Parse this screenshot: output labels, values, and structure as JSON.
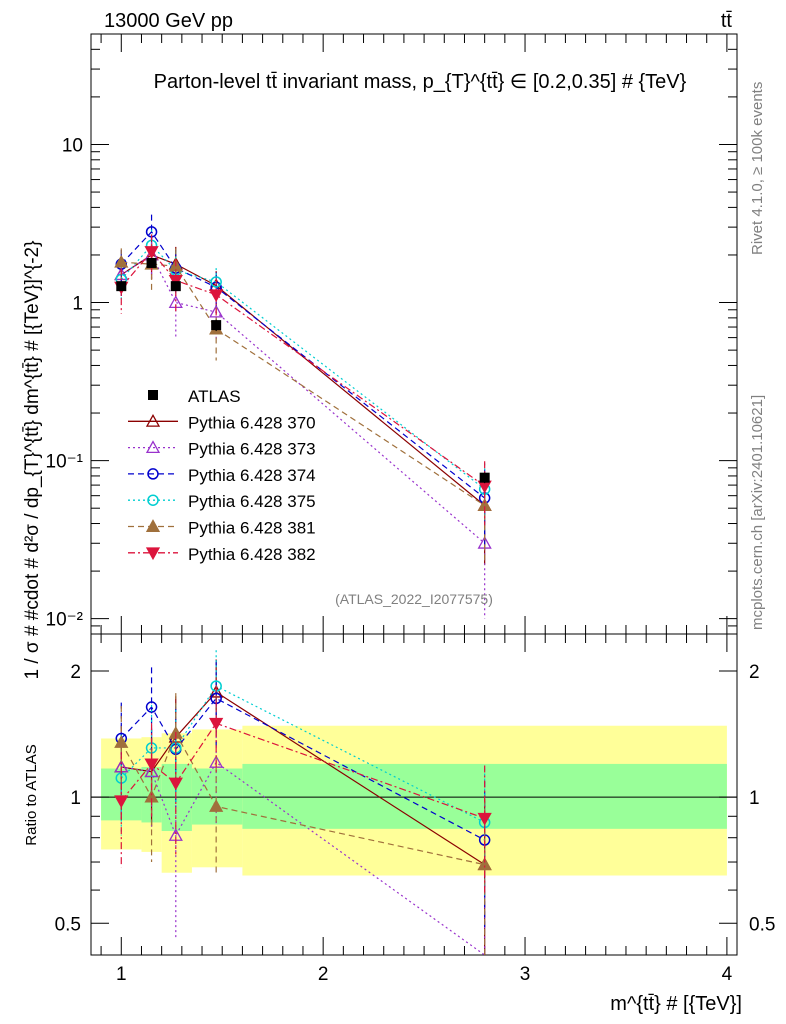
{
  "header": {
    "left": "13000 GeV pp",
    "right": "tt̄"
  },
  "side": {
    "rivet": "Rivet 4.1.0, ≥ 100k events",
    "mcplots": "mcplots.cern.ch [arXiv:2401.10621]"
  },
  "watermark": "(ATLAS_2022_I2077575)",
  "chart_data": [
    {
      "panel": "main",
      "type": "line",
      "title": "Parton-level tt̄ invariant mass, p_{T}^{tt̄} ∈ [0.2,0.35] # {TeV}",
      "ylabel": "1 / σ # #cdot # d²σ / dp_{T}^{tt̄} dm^{tt̄} # [{TeV}]^{-2}",
      "xlabel": "m^{tt̄} # [{TeV}]",
      "yscale": "log",
      "ylim": [
        0.008,
        50
      ],
      "xlim": [
        0.85,
        4.05
      ],
      "yticks": [
        {
          "value": 10,
          "label": "10"
        },
        {
          "value": 1,
          "label": "1"
        },
        {
          "value": 0.1,
          "label": "10⁻¹"
        },
        {
          "value": 0.01,
          "label": "10⁻²"
        }
      ],
      "x": [
        1.0,
        1.15,
        1.27,
        1.47,
        2.8
      ],
      "data": {
        "name": "ATLAS",
        "values": [
          1.27,
          1.78,
          1.27,
          0.72,
          0.078
        ],
        "errors": [
          0.08,
          0.1,
          0.08,
          0.06,
          0.006
        ]
      },
      "series": [
        {
          "name": "Pythia 6.428 370",
          "color": "#8b0000",
          "marker": "triangle-up-open",
          "dash": "solid",
          "values": [
            1.5,
            2.0,
            1.75,
            1.28,
            0.052
          ],
          "errors": [
            0.4,
            0.6,
            0.5,
            0.3,
            0.03
          ]
        },
        {
          "name": "Pythia 6.428 373",
          "color": "#9932cc",
          "marker": "triangle-up-open",
          "dash": "dot",
          "values": [
            1.5,
            2.0,
            1.0,
            0.87,
            0.03
          ],
          "errors": [
            0.4,
            0.6,
            0.4,
            0.3,
            0.02
          ]
        },
        {
          "name": "Pythia 6.428 374",
          "color": "#0000cd",
          "marker": "circle-open",
          "dash": "dash",
          "values": [
            1.75,
            2.8,
            1.65,
            1.25,
            0.058
          ],
          "errors": [
            0.4,
            0.8,
            0.5,
            0.3,
            0.03
          ]
        },
        {
          "name": "Pythia 6.428 375",
          "color": "#00ced1",
          "marker": "circle-open",
          "dash": "dot",
          "values": [
            1.4,
            2.3,
            1.6,
            1.35,
            0.066
          ],
          "errors": [
            0.4,
            0.6,
            0.5,
            0.3,
            0.03
          ]
        },
        {
          "name": "Pythia 6.428 381",
          "color": "#a0703c",
          "marker": "triangle-up-filled",
          "dash": "dash",
          "values": [
            1.8,
            1.75,
            1.7,
            0.68,
            0.052
          ],
          "errors": [
            0.4,
            0.6,
            0.5,
            0.25,
            0.03
          ]
        },
        {
          "name": "Pythia 6.428 382",
          "color": "#dc143c",
          "marker": "triangle-down-filled",
          "dash": "dashdot",
          "values": [
            1.25,
            2.1,
            1.38,
            1.12,
            0.069
          ],
          "errors": [
            0.4,
            0.6,
            0.5,
            0.3,
            0.03
          ]
        }
      ]
    },
    {
      "panel": "ratio",
      "type": "line",
      "ylabel": "Ratio to ATLAS",
      "yscale": "log",
      "ylim": [
        0.42,
        2.45
      ],
      "xlim": [
        0.85,
        4.05
      ],
      "yticks": [
        {
          "value": 2,
          "label": "2"
        },
        {
          "value": 1,
          "label": "1"
        },
        {
          "value": 0.5,
          "label": "0.5"
        }
      ],
      "xticks": [
        {
          "value": 1,
          "label": "1"
        },
        {
          "value": 2,
          "label": "2"
        },
        {
          "value": 3,
          "label": "3"
        },
        {
          "value": 4,
          "label": "4"
        }
      ],
      "bands": [
        {
          "x0": 0.9,
          "x1": 1.1,
          "inner": [
            0.88,
            1.17
          ],
          "outer": [
            0.75,
            1.38
          ]
        },
        {
          "x0": 1.1,
          "x1": 1.2,
          "inner": [
            0.87,
            1.18
          ],
          "outer": [
            0.74,
            1.39
          ]
        },
        {
          "x0": 1.2,
          "x1": 1.35,
          "inner": [
            0.83,
            1.2
          ],
          "outer": [
            0.66,
            1.42
          ]
        },
        {
          "x0": 1.35,
          "x1": 1.6,
          "inner": [
            0.86,
            1.17
          ],
          "outer": [
            0.68,
            1.45
          ]
        },
        {
          "x0": 1.6,
          "x1": 4.0,
          "inner": [
            0.84,
            1.2
          ],
          "outer": [
            0.65,
            1.48
          ]
        }
      ],
      "x": [
        1.0,
        1.15,
        1.27,
        1.47,
        2.8
      ],
      "series": [
        {
          "name": "Pythia 6.428 370",
          "values": [
            1.18,
            1.15,
            1.39,
            1.78,
            0.69
          ],
          "errors": [
            0.3,
            0.3,
            0.35,
            0.35,
            0.3
          ]
        },
        {
          "name": "Pythia 6.428 373",
          "values": [
            1.18,
            1.15,
            0.81,
            1.21,
            0.38
          ],
          "errors": [
            0.3,
            0.3,
            0.35,
            0.35,
            0.2
          ]
        },
        {
          "name": "Pythia 6.428 374",
          "values": [
            1.38,
            1.64,
            1.3,
            1.72,
            0.79
          ],
          "errors": [
            0.3,
            0.4,
            0.35,
            0.4,
            0.3
          ]
        },
        {
          "name": "Pythia 6.428 375",
          "values": [
            1.11,
            1.31,
            1.31,
            1.84,
            0.87
          ],
          "errors": [
            0.3,
            0.35,
            0.35,
            0.4,
            0.3
          ]
        },
        {
          "name": "Pythia 6.428 381",
          "values": [
            1.35,
            1.0,
            1.42,
            0.95,
            0.69
          ],
          "errors": [
            0.3,
            0.3,
            0.35,
            0.3,
            0.3
          ]
        },
        {
          "name": "Pythia 6.428 382",
          "values": [
            0.98,
            1.2,
            1.08,
            1.5,
            0.89
          ],
          "errors": [
            0.3,
            0.3,
            0.35,
            0.35,
            0.3
          ]
        }
      ]
    }
  ]
}
